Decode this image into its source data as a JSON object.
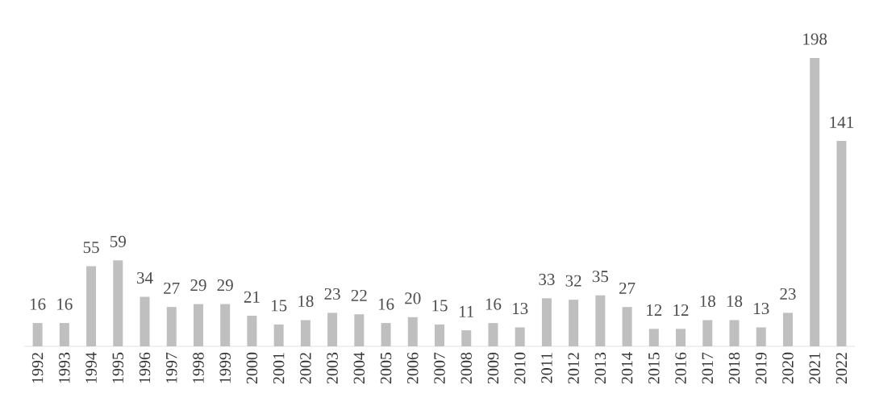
{
  "chart_data": {
    "type": "bar",
    "categories": [
      "1992",
      "1993",
      "1994",
      "1995",
      "1996",
      "1997",
      "1998",
      "1999",
      "2000",
      "2001",
      "2002",
      "2003",
      "2004",
      "2005",
      "2006",
      "2007",
      "2008",
      "2009",
      "2010",
      "2011",
      "2012",
      "2013",
      "2014",
      "2015",
      "2016",
      "2017",
      "2018",
      "2019",
      "2020",
      "2021",
      "2022"
    ],
    "values": [
      16,
      16,
      55,
      59,
      34,
      27,
      29,
      29,
      21,
      15,
      18,
      23,
      22,
      16,
      20,
      15,
      11,
      16,
      13,
      33,
      32,
      35,
      27,
      12,
      12,
      18,
      18,
      13,
      23,
      198,
      141
    ],
    "color": "#bfbfbf",
    "data_labels": true
  }
}
